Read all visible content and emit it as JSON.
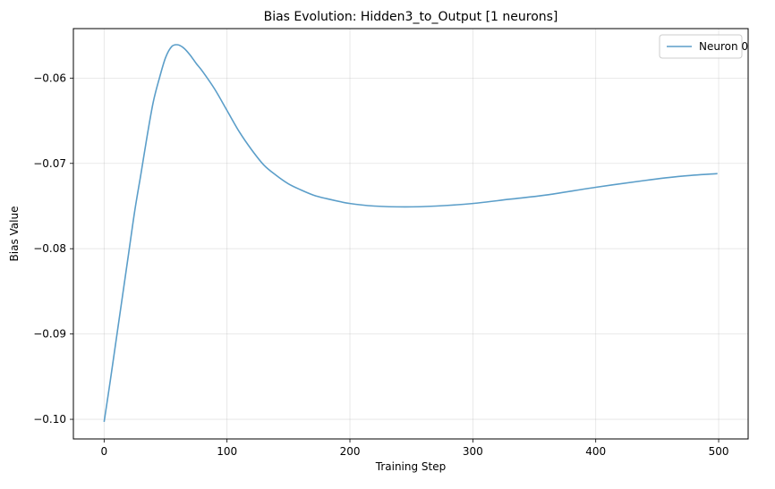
{
  "chart_data": {
    "type": "line",
    "title": "Bias Evolution: Hidden3_to_Output [1 neurons]",
    "xlabel": "Training Step",
    "ylabel": "Bias Value",
    "xlim": [
      -25,
      524
    ],
    "ylim": [
      -0.1023,
      -0.0542
    ],
    "xticks": [
      0,
      100,
      200,
      300,
      400,
      500
    ],
    "xtick_labels": [
      "0",
      "100",
      "200",
      "300",
      "400",
      "500"
    ],
    "yticks": [
      -0.1,
      -0.09,
      -0.08,
      -0.07,
      -0.06
    ],
    "ytick_labels": [
      "−0.10",
      "−0.09",
      "−0.08",
      "−0.07",
      "−0.06"
    ],
    "grid": true,
    "legend_position": "top-right",
    "series": [
      {
        "name": "Neuron 0",
        "color": "#5b9ec9",
        "x": [
          0,
          5,
          10,
          15,
          20,
          25,
          30,
          35,
          40,
          45,
          50,
          55,
          60,
          65,
          70,
          75,
          80,
          90,
          100,
          110,
          120,
          130,
          140,
          150,
          160,
          170,
          180,
          200,
          220,
          245,
          270,
          300,
          330,
          360,
          400,
          440,
          470,
          499
        ],
        "y": [
          -0.1003,
          -0.0955,
          -0.0905,
          -0.0855,
          -0.0805,
          -0.0755,
          -0.0712,
          -0.0668,
          -0.0628,
          -0.06,
          -0.0576,
          -0.0563,
          -0.0561,
          -0.0565,
          -0.0573,
          -0.0583,
          -0.0592,
          -0.0613,
          -0.0638,
          -0.0663,
          -0.0684,
          -0.0702,
          -0.0714,
          -0.0724,
          -0.0731,
          -0.0737,
          -0.0741,
          -0.0747,
          -0.075,
          -0.0751,
          -0.075,
          -0.0747,
          -0.0742,
          -0.0737,
          -0.0728,
          -0.072,
          -0.0715,
          -0.0712
        ]
      }
    ]
  }
}
